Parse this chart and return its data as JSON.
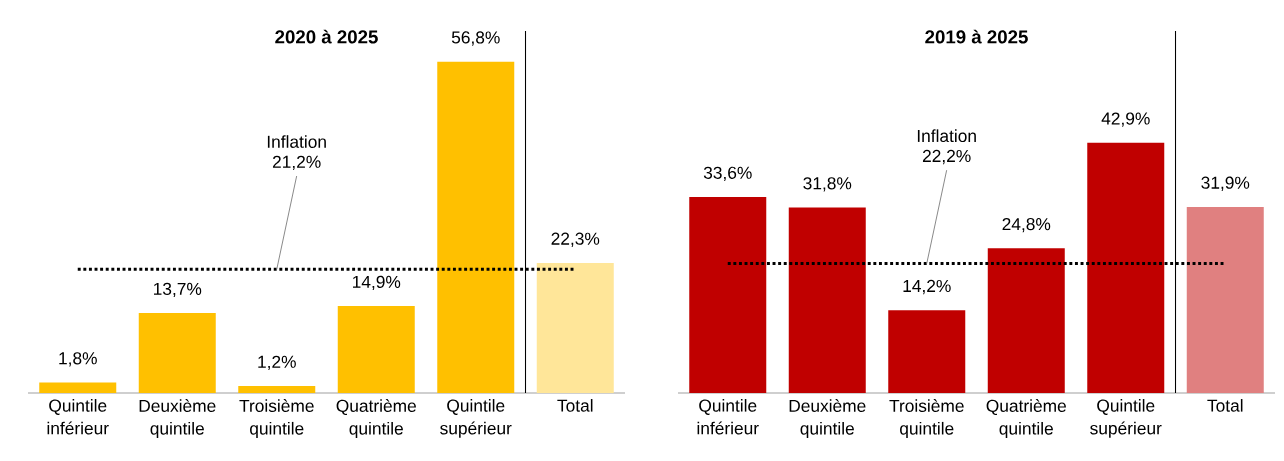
{
  "chart_data": [
    {
      "type": "bar",
      "title": "**2020 à 2025**",
      "categories": [
        "Quintile inférieur",
        "Deuxième quintile",
        "Troisième quintile",
        "Quatrième quintile",
        "Quintile supérieur",
        "Total"
      ],
      "values": [
        1.8,
        13.7,
        1.2,
        14.9,
        56.8,
        22.3
      ],
      "value_labels": [
        "1,8%",
        "13,7%",
        "1,2%",
        "14,9%",
        "56,8%",
        "22,3%"
      ],
      "colors": [
        "#ffc000",
        "#ffc000",
        "#ffc000",
        "#ffc000",
        "#ffc000",
        "#ffe699"
      ],
      "tick_labels": "x",
      "ref_lines": [
        {
          "axis": "y",
          "value": 21.2,
          "label": "Inflation 21,2%",
          "color": "#000000",
          "line_style": "dotted"
        }
      ]
    },
    {
      "type": "bar",
      "title": "**2019 à 2025**",
      "categories": [
        "Quintile inférieur",
        "Deuxième quintile",
        "Troisième quintile",
        "Quatrième quintile",
        "Quintile supérieur",
        "Total"
      ],
      "values": [
        33.6,
        31.8,
        14.2,
        24.8,
        42.9,
        31.9
      ],
      "value_labels": [
        "33,6%",
        "31,8%",
        "14,2%",
        "24,8%",
        "42,9%",
        "31,9%"
      ],
      "colors": [
        "#c00000",
        "#c00000",
        "#c00000",
        "#c00000",
        "#c00000",
        "#e08080"
      ],
      "tick_labels": "x",
      "ref_lines": [
        {
          "axis": "y",
          "value": 22.2,
          "label": "Inflation 22,2%",
          "color": "#000000",
          "line_style": "dotted"
        }
      ]
    }
  ]
}
